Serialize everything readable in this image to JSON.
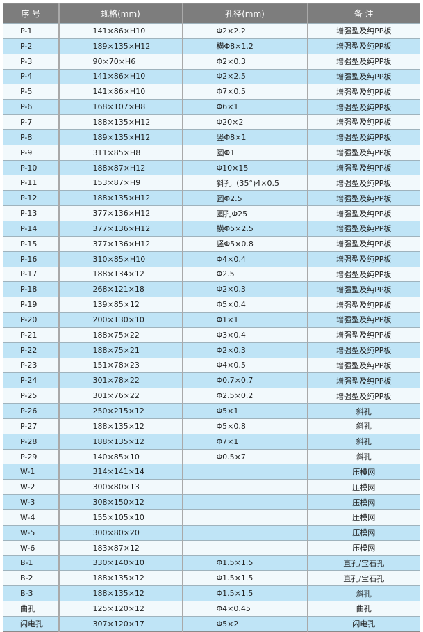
{
  "header": [
    "序 号",
    "规格(mm)",
    "孔径(mm)",
    "备  注"
  ],
  "rows": [
    [
      "P-1",
      "141×86×H10",
      "Φ2×2.2",
      "增强型及纯PP板"
    ],
    [
      "P-2",
      "189×135×H12",
      "横Φ8×1.2",
      "增强型及纯PP板"
    ],
    [
      "P-3",
      "90×70×H6",
      "Φ2×0.3",
      "增强型及纯PP板"
    ],
    [
      "P-4",
      "141×86×H10",
      "Φ2×2.5",
      "增强型及纯PP板"
    ],
    [
      "P-5",
      "141×86×H10",
      "Φ7×0.5",
      "增强型及纯PP板"
    ],
    [
      "P-6",
      "168×107×H8",
      "Φ6×1",
      "增强型及纯PP板"
    ],
    [
      "P-7",
      "188×135×H12",
      "Φ20×2",
      "增强型及纯PP板"
    ],
    [
      "P-8",
      "189×135×H12",
      "竖Φ8×1",
      "增强型及纯PP板"
    ],
    [
      "P-9",
      "311×85×H8",
      "圆Φ1",
      "增强型及纯PP板"
    ],
    [
      "P-10",
      "188×87×H12",
      "Φ10×15",
      "增强型及纯PP板"
    ],
    [
      "P-11",
      "153×87×H9",
      "斜孔（35°)4×0.5",
      "增强型及纯PP板"
    ],
    [
      "P-12",
      "188×135×H12",
      "圆Φ2.5",
      "增强型及纯PP板"
    ],
    [
      "P-13",
      "377×136×H12",
      "圆孔Φ25",
      "增强型及纯PP板"
    ],
    [
      "P-14",
      "377×136×H12",
      "横Φ5×2.5",
      "增强型及纯PP板"
    ],
    [
      "P-15",
      "377×136×H12",
      "竖Φ5×0.8",
      "增强型及纯PP板"
    ],
    [
      "P-16",
      "310×85×H10",
      "Φ4×0.4",
      "增强型及纯PP板"
    ],
    [
      "P-17",
      "188×134×12",
      "Φ2.5",
      "增强型及纯PP板"
    ],
    [
      "P-18",
      "268×121×18",
      "Φ2×0.3",
      "增强型及纯PP板"
    ],
    [
      "P-19",
      "139×85×12",
      "Φ5×0.4",
      "增强型及纯PP板"
    ],
    [
      "P-20",
      "200×130×10",
      "Φ1×1",
      "增强型及纯PP板"
    ],
    [
      "P-21",
      "188×75×22",
      "Φ3×0.4",
      "增强型及纯PP板"
    ],
    [
      "P-22",
      "188×75×21",
      "Φ2×0.3",
      "增强型及纯PP板"
    ],
    [
      "P-23",
      "151×78×23",
      "Φ4×0.5",
      "增强型及纯PP板"
    ],
    [
      "P-24",
      "301×78×22",
      "Φ0.7×0.7",
      "增强型及纯PP板"
    ],
    [
      "P-25",
      "301×76×22",
      "Φ2.5×0.2",
      "增强型及纯PP板"
    ],
    [
      "P-26",
      "250×215×12",
      "Φ5×1",
      "斜孔"
    ],
    [
      "P-27",
      "188×135×12",
      "Φ5×0.8",
      "斜孔"
    ],
    [
      "P-28",
      "188×135×12",
      "Φ7×1",
      "斜孔"
    ],
    [
      "P-29",
      "140×85×10",
      "Φ0.5×7",
      "斜孔"
    ],
    [
      "W-1",
      "314×141×14",
      "",
      "压模网"
    ],
    [
      "W-2",
      "300×80×13",
      "",
      "压模网"
    ],
    [
      "W-3",
      "308×150×12",
      "",
      "压模网"
    ],
    [
      "W-4",
      "155×105×10",
      "",
      "压模网"
    ],
    [
      "W-5",
      "300×80×20",
      "",
      "压模网"
    ],
    [
      "W-6",
      "183×87×12",
      "",
      "压模网"
    ],
    [
      "B-1",
      "330×140×10",
      "Φ1.5×1.5",
      "直孔/宝石孔"
    ],
    [
      "B-2",
      "188×135×12",
      "Φ1.5×1.5",
      "直孔/宝石孔"
    ],
    [
      "B-3",
      "188×135×12",
      "Φ1.5×1.5",
      "斜孔"
    ],
    [
      "曲孔",
      "125×120×12",
      "Φ4×0.45",
      "曲孔"
    ],
    [
      "闪电孔",
      "307×120×17",
      "Φ5×2",
      "闪电孔"
    ]
  ],
  "colors": {
    "header": "#7d7d7d",
    "row_light": "#f2f9fc",
    "row_blue": "#bfe4f6"
  }
}
